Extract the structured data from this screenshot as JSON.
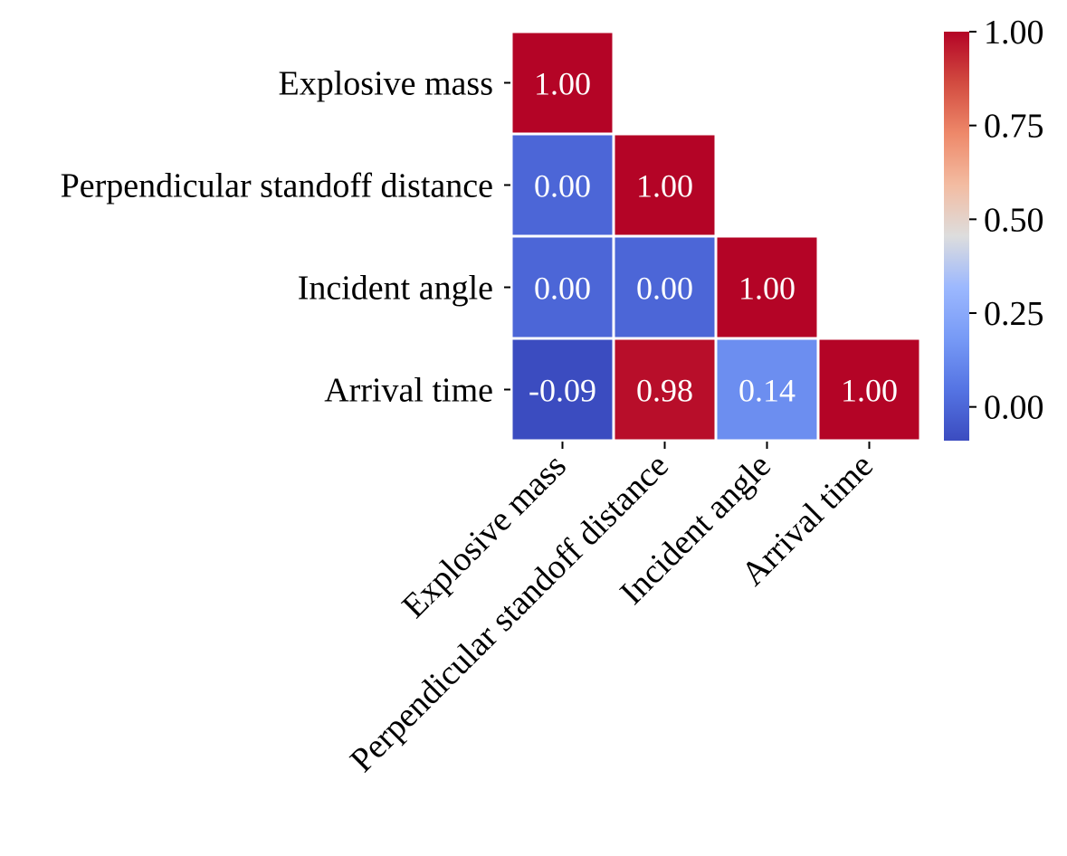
{
  "chart_data": {
    "type": "heatmap",
    "title": "",
    "xlabel": "",
    "ylabel": "",
    "variables": [
      "Explosive mass",
      "Perpendicular standoff distance",
      "Incident angle",
      "Arrival time"
    ],
    "x_tick_labels": [
      "Explosive mass",
      "Perpendicular standoff distance",
      "Incident angle",
      "Arrival time"
    ],
    "y_tick_labels": [
      "Explosive mass",
      "Perpendicular standoff distance",
      "Incident angle",
      "Arrival time"
    ],
    "matrix": [
      [
        1.0,
        null,
        null,
        null
      ],
      [
        0.0,
        1.0,
        null,
        null
      ],
      [
        0.0,
        0.0,
        1.0,
        null
      ],
      [
        -0.09,
        0.98,
        0.14,
        1.0
      ]
    ],
    "cell_labels": [
      [
        "1.00",
        "",
        "",
        ""
      ],
      [
        "0.00",
        "1.00",
        "",
        ""
      ],
      [
        "0.00",
        "0.00",
        "1.00",
        ""
      ],
      [
        "-0.09",
        "0.98",
        "0.14",
        "1.00"
      ]
    ],
    "mask": "upper triangle",
    "colormap": "coolwarm",
    "vmin": -0.09,
    "vmax": 1.0,
    "colorbar": {
      "ticks": [
        0.0,
        0.25,
        0.5,
        0.75,
        1.0
      ],
      "tick_labels": [
        "0.00",
        "0.25",
        "0.50",
        "0.75",
        "1.00"
      ]
    },
    "cell_border_color": "#ffffff"
  }
}
